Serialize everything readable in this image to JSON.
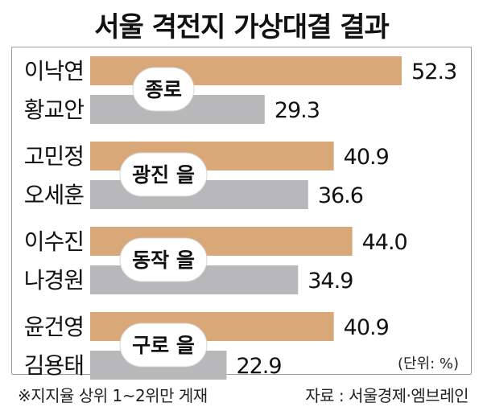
{
  "title": "서울 격전지 가상대결 결과",
  "unit_label": "(단위: %)",
  "footnote": "※지지율 상위 1~2위만 게재",
  "source": "자료 : 서울경제·엠브레인",
  "colors": {
    "first": "#d9a878",
    "second": "#b8b8bb",
    "badge": "#ffffff",
    "badge_text": "#111111"
  },
  "chart_data": {
    "type": "bar",
    "orientation": "horizontal",
    "title": "서울 격전지 가상대결 결과",
    "unit": "%",
    "groups": [
      {
        "district": "종로",
        "candidates": [
          {
            "name": "이낙연",
            "value": 52.3,
            "label": "52.3"
          },
          {
            "name": "황교안",
            "value": 29.3,
            "label": "29.3"
          }
        ]
      },
      {
        "district": "광진 을",
        "candidates": [
          {
            "name": "고민정",
            "value": 40.9,
            "label": "40.9"
          },
          {
            "name": "오세훈",
            "value": 36.6,
            "label": "36.6"
          }
        ]
      },
      {
        "district": "동작 을",
        "candidates": [
          {
            "name": "이수진",
            "value": 44.0,
            "label": "44.0"
          },
          {
            "name": "나경원",
            "value": 34.9,
            "label": "34.9"
          }
        ]
      },
      {
        "district": "구로 을",
        "candidates": [
          {
            "name": "윤건영",
            "value": 40.9,
            "label": "40.9"
          },
          {
            "name": "김용태",
            "value": 22.9,
            "label": "22.9"
          }
        ]
      }
    ]
  }
}
